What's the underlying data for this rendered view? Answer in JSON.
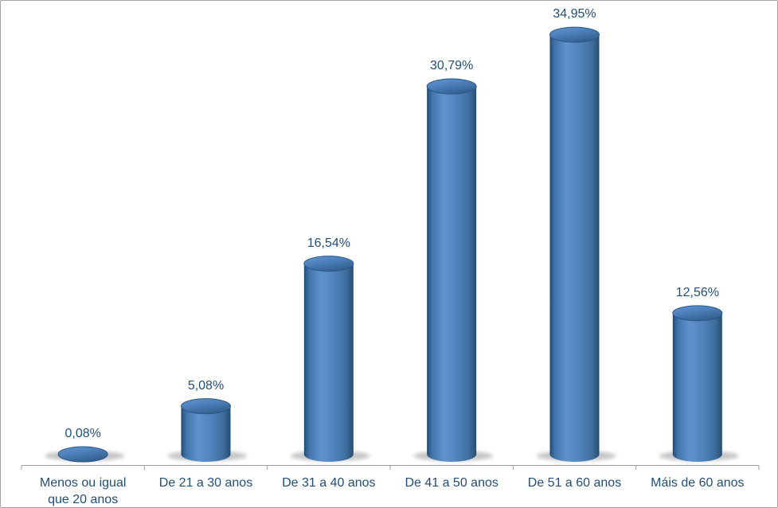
{
  "window": {
    "background": "#FFFFFF",
    "border_color": "#A2A2A2"
  },
  "chart_data": {
    "type": "bar",
    "subtype": "3d-cylinder",
    "orientation": "vertical",
    "title": "",
    "xlabel": "",
    "ylabel": "",
    "grid": false,
    "legend": "none",
    "value_axis_visible": false,
    "data_label_position": "above-bar",
    "categories": [
      "Menos ou igual\nque 20 anos",
      "De 21 a 30 anos",
      "De 31 a 40 anos",
      "De 41 a 50 anos",
      "De 51 a 60 anos",
      "Máis de 60 anos"
    ],
    "values": [
      0.08,
      5.08,
      16.54,
      30.79,
      34.95,
      12.56
    ],
    "value_labels": [
      "0,08%",
      "5,08%",
      "16,54%",
      "30,79%",
      "34,95%",
      "12,56%"
    ],
    "colors": {
      "bar_fill_main": "#4E81BD",
      "bar_fill_highlight": "#5F93CD",
      "bar_edge_dark": "#1E4568",
      "cap_fill_light": "#6497D0",
      "cap_fill_dark": "#33618F",
      "cap_stroke": "#2B5685",
      "label_text": "#1F4E79",
      "axis_line": "#9C9C9C",
      "drop_shadow": "#8E8E8E"
    }
  }
}
